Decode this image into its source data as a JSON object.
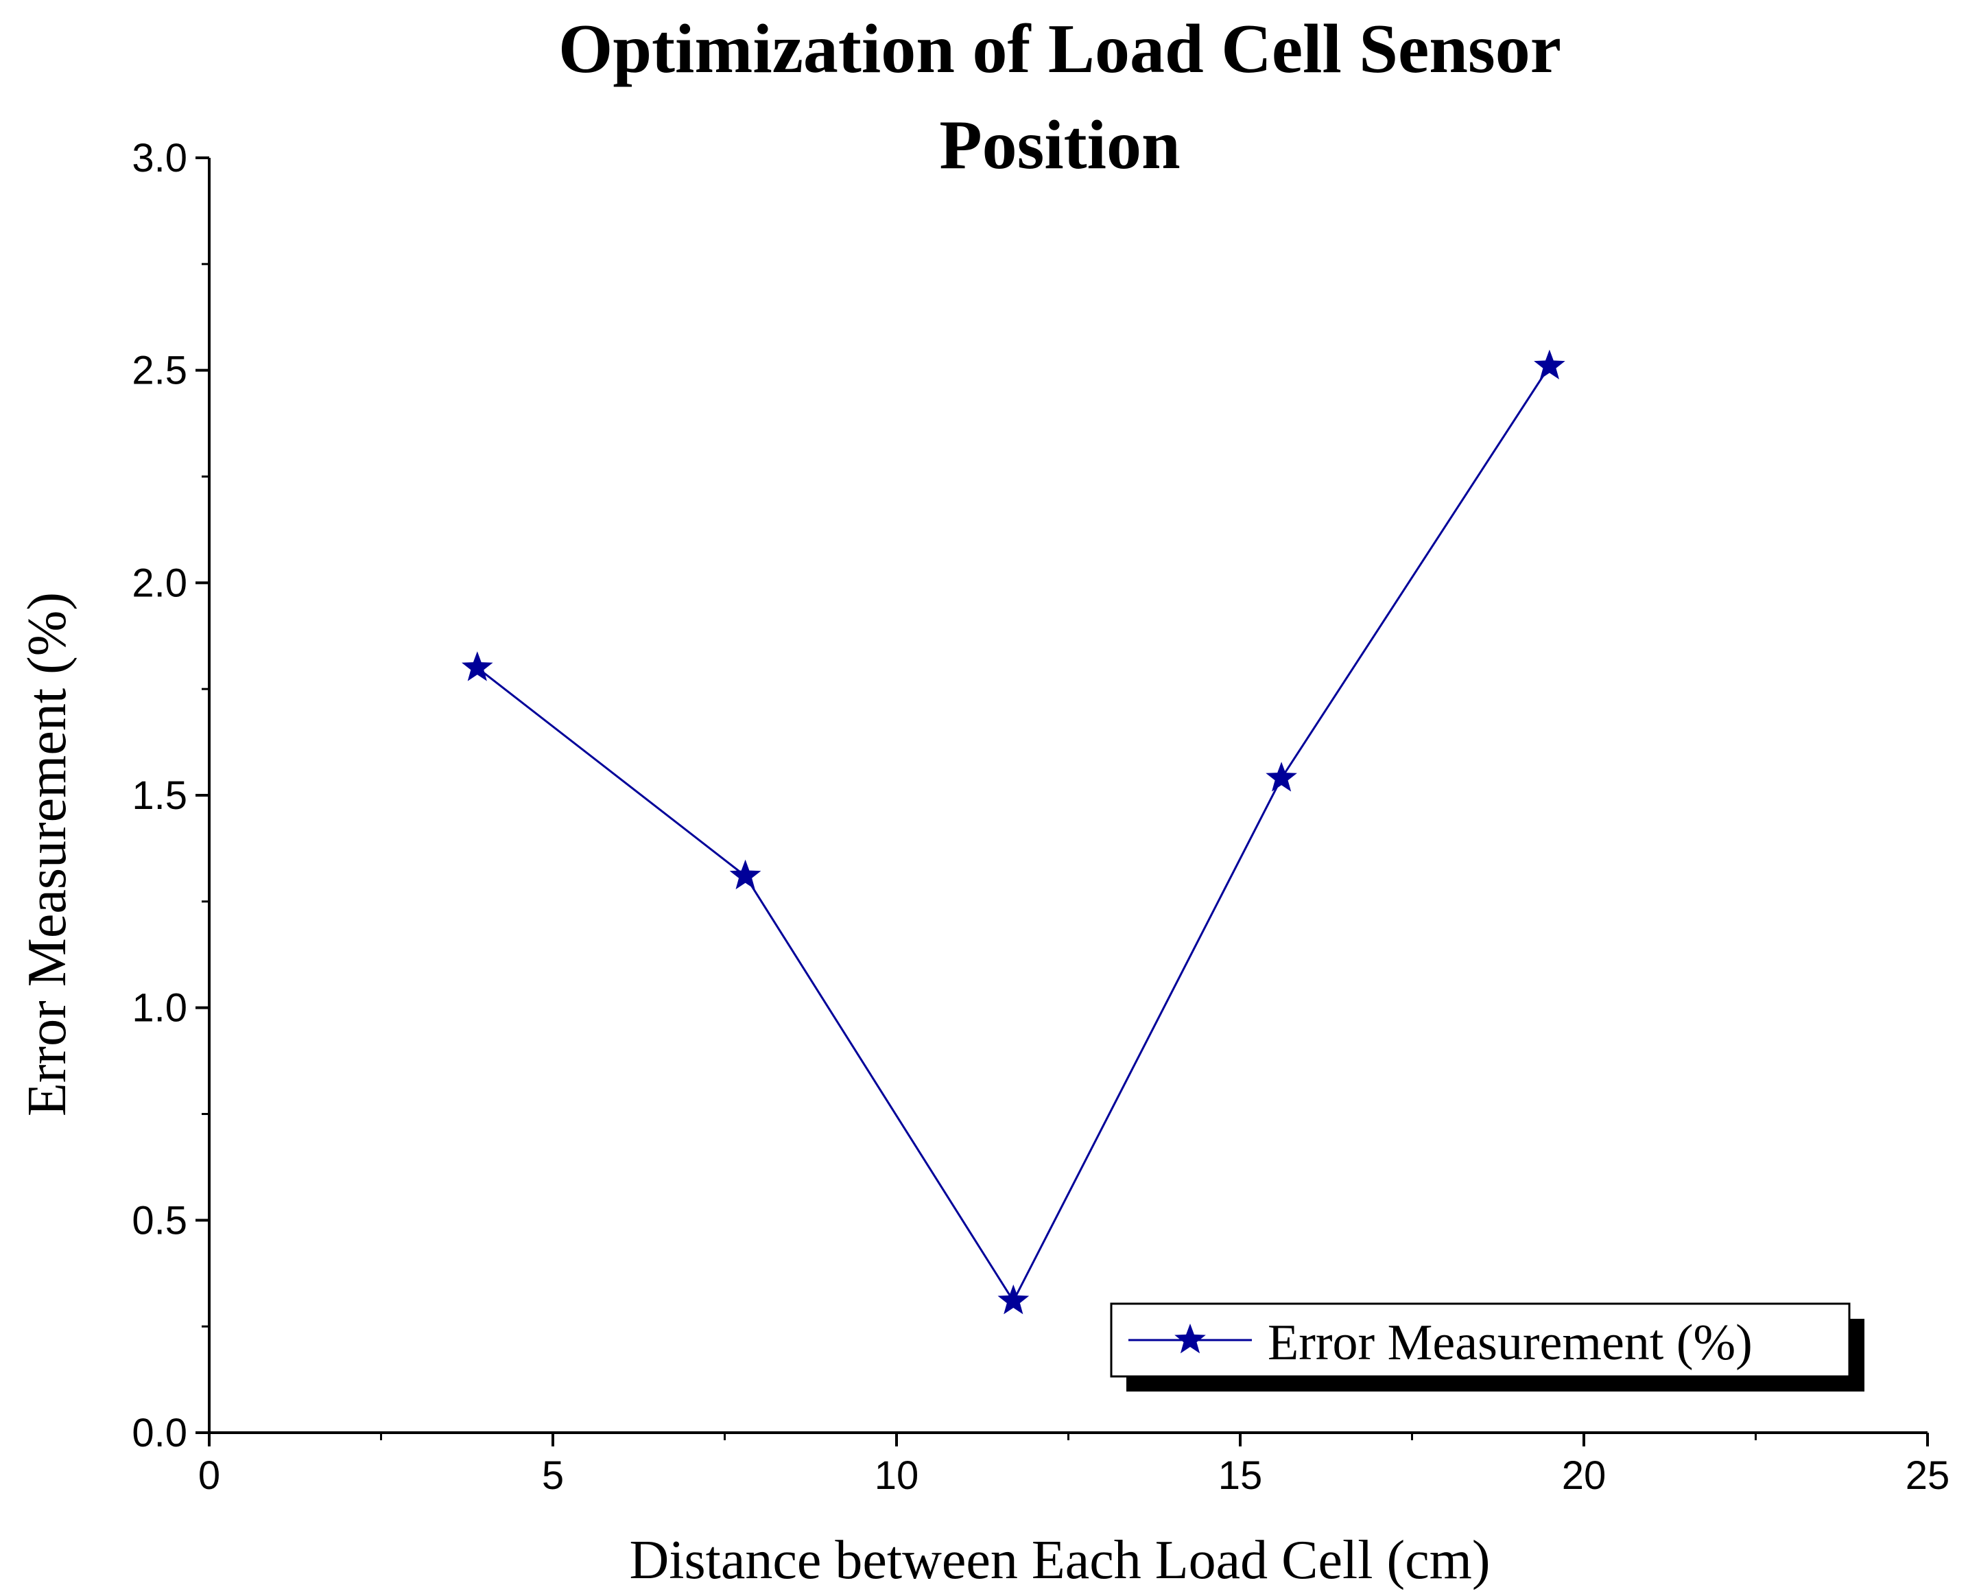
{
  "chart_data": {
    "type": "line",
    "title_lines": [
      "Optimization of Load Cell Sensor",
      "Position"
    ],
    "xlabel": "Distance between Each Load Cell (cm)",
    "ylabel": "Error Measurement (%)",
    "xlim": [
      0,
      25
    ],
    "ylim": [
      0,
      3
    ],
    "xticks": [
      "0",
      "5",
      "10",
      "15",
      "20",
      "25"
    ],
    "yticks": [
      "0.0",
      "0.5",
      "1.0",
      "1.5",
      "2.0",
      "2.5",
      "3.0"
    ],
    "grid": false,
    "legend_position": "bottom-right",
    "series": [
      {
        "name": "Error Measurement (%)",
        "marker": "star",
        "color": "#000099",
        "x": [
          3.9,
          7.8,
          11.7,
          15.6,
          19.5
        ],
        "y": [
          1.8,
          1.31,
          0.31,
          1.54,
          2.51
        ]
      }
    ]
  }
}
